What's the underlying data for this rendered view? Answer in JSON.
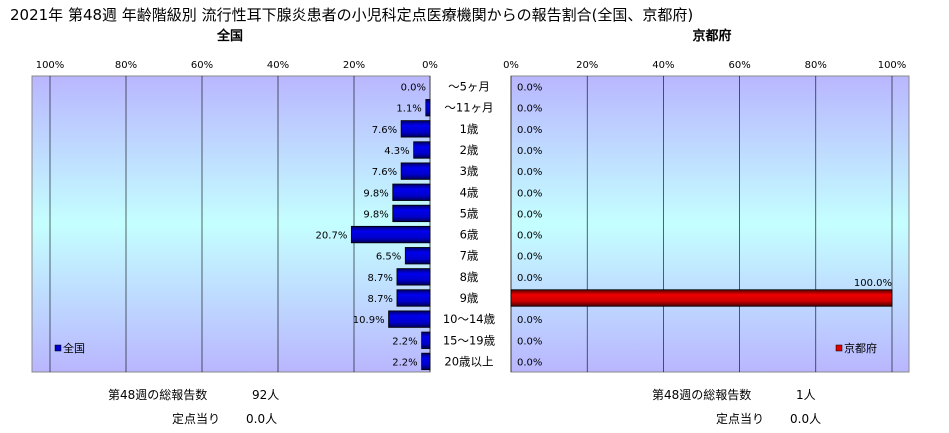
{
  "title": "2021年 第48週 年齢階級別 流行性耳下腺炎患者の小児科定点医療機関からの報告割合(全国、京都府)",
  "chart_data": [
    {
      "type": "bar",
      "orientation": "horizontal",
      "panel_title": "全国",
      "axis_direction": "reversed",
      "xlim": [
        0,
        100
      ],
      "x_ticks": [
        "100%",
        "80%",
        "60%",
        "40%",
        "20%",
        "0%"
      ],
      "grid": true,
      "legend": "bottom-left",
      "categories": [
        "～5ヶ月",
        "～11ヶ月",
        "1歳",
        "2歳",
        "3歳",
        "4歳",
        "5歳",
        "6歳",
        "7歳",
        "8歳",
        "9歳",
        "10～14歳",
        "15～19歳",
        "20歳以上"
      ],
      "series": [
        {
          "name": "全国",
          "color": "#0000cc",
          "values": [
            0.0,
            1.1,
            7.6,
            4.3,
            7.6,
            9.8,
            9.8,
            20.7,
            6.5,
            8.7,
            8.7,
            10.9,
            2.2,
            2.2
          ],
          "labels": [
            "0.0%",
            "1.1%",
            "7.6%",
            "4.3%",
            "7.6%",
            "9.8%",
            "9.8%",
            "20.7%",
            "6.5%",
            "8.7%",
            "8.7%",
            "10.9%",
            "2.2%",
            "2.2%"
          ]
        }
      ]
    },
    {
      "type": "bar",
      "orientation": "horizontal",
      "panel_title": "京都府",
      "xlim": [
        0,
        100
      ],
      "x_ticks": [
        "0%",
        "20%",
        "40%",
        "60%",
        "80%",
        "100%"
      ],
      "grid": true,
      "legend": "bottom-right",
      "categories": [
        "～5ヶ月",
        "～11ヶ月",
        "1歳",
        "2歳",
        "3歳",
        "4歳",
        "5歳",
        "6歳",
        "7歳",
        "8歳",
        "9歳",
        "10～14歳",
        "15～19歳",
        "20歳以上"
      ],
      "series": [
        {
          "name": "京都府",
          "color": "#dd0000",
          "values": [
            0.0,
            0.0,
            0.0,
            0.0,
            0.0,
            0.0,
            0.0,
            0.0,
            0.0,
            0.0,
            100.0,
            0.0,
            0.0,
            0.0
          ],
          "labels": [
            "0.0%",
            "0.0%",
            "0.0%",
            "0.0%",
            "0.0%",
            "0.0%",
            "0.0%",
            "0.0%",
            "0.0%",
            "0.0%",
            "100.0%",
            "0.0%",
            "0.0%",
            "0.0%"
          ]
        }
      ]
    }
  ],
  "footer": {
    "national": {
      "total_label": "第48週の総報告数",
      "total_value": "92人",
      "per_label": "定点当り",
      "per_value": "0.0人"
    },
    "kyoto": {
      "total_label": "第48週の総報告数",
      "total_value": "1人",
      "per_label": "定点当り",
      "per_value": "0.0人"
    }
  }
}
